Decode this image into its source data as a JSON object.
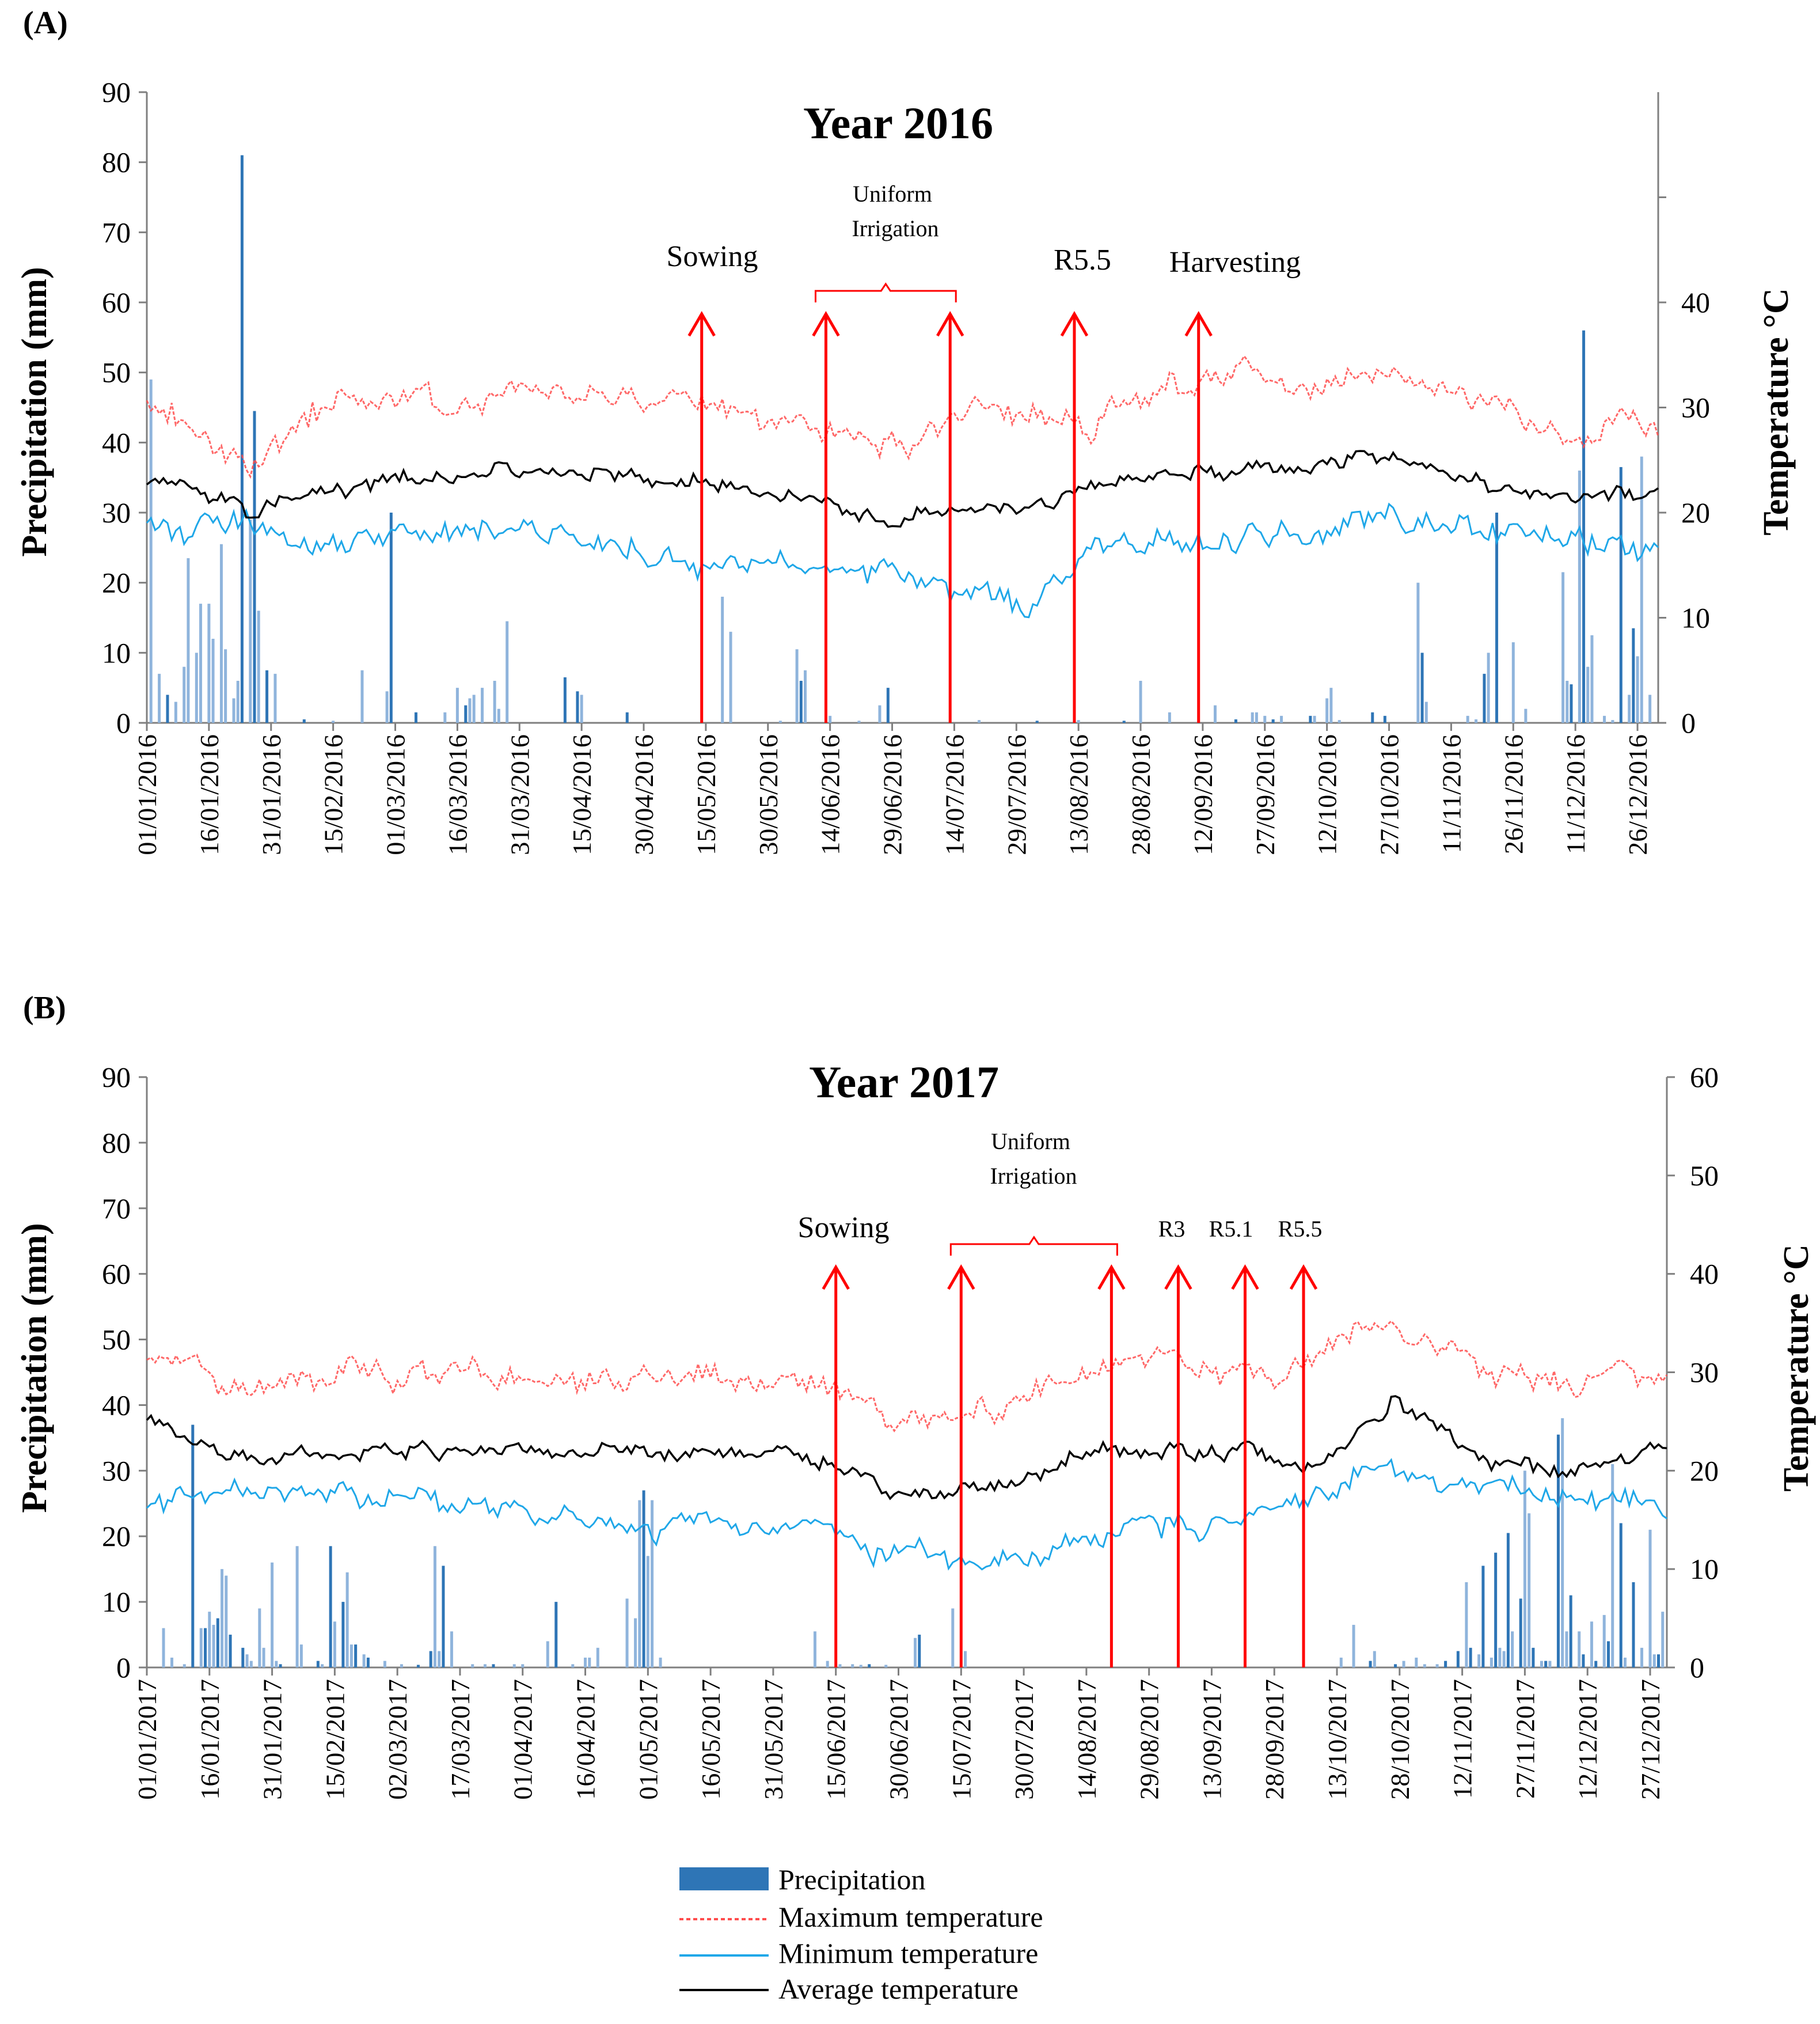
{
  "legend": {
    "precipitation": "Precipitation",
    "max_temp": "Maximum temperature",
    "min_temp": "Minimum temperature",
    "avg_temp": "Average temperature"
  },
  "colors": {
    "precipitation": "#2e75b6",
    "max_temp": "#ff4d4d",
    "min_temp": "#1fa7e8",
    "avg_temp": "#000000",
    "arrow": "#ff0000"
  },
  "chart_data": [
    {
      "type": "bar",
      "panel_label": "(A)",
      "title": "Year 2016",
      "ylabel": "Precipitation (mm)",
      "y2label": "Temperature °C",
      "ylim": [
        0,
        90
      ],
      "y2lim": [
        0,
        60
      ],
      "yticks": [
        0,
        10,
        20,
        30,
        40,
        50,
        60,
        70,
        80,
        90
      ],
      "y2ticks": [
        0,
        10,
        20,
        30,
        40
      ],
      "xticks": [
        "01/01/2016",
        "16/01/2016",
        "31/01/2016",
        "15/02/2016",
        "01/03/2016",
        "16/03/2016",
        "31/03/2016",
        "15/04/2016",
        "30/04/2016",
        "15/05/2016",
        "30/05/2016",
        "14/06/2016",
        "29/06/2016",
        "14/07/2016",
        "29/07/2016",
        "13/08/2016",
        "28/08/2016",
        "12/09/2016",
        "27/09/2016",
        "12/10/2016",
        "27/10/2016",
        "11/11/2016",
        "26/11/2016",
        "11/12/2016",
        "26/12/2016"
      ],
      "days": 366,
      "precipitation": [
        {
          "day": 2,
          "mm": 49
        },
        {
          "day": 4,
          "mm": 7
        },
        {
          "day": 6,
          "mm": 4
        },
        {
          "day": 8,
          "mm": 3
        },
        {
          "day": 10,
          "mm": 8
        },
        {
          "day": 11,
          "mm": 23.5
        },
        {
          "day": 13,
          "mm": 10
        },
        {
          "day": 14,
          "mm": 17
        },
        {
          "day": 16,
          "mm": 17
        },
        {
          "day": 17,
          "mm": 12
        },
        {
          "day": 19,
          "mm": 25.5
        },
        {
          "day": 20,
          "mm": 10.5
        },
        {
          "day": 22,
          "mm": 3.5
        },
        {
          "day": 23,
          "mm": 6
        },
        {
          "day": 24,
          "mm": 81
        },
        {
          "day": 26,
          "mm": 29
        },
        {
          "day": 27,
          "mm": 44.5
        },
        {
          "day": 28,
          "mm": 16
        },
        {
          "day": 30,
          "mm": 7.5
        },
        {
          "day": 32,
          "mm": 7
        },
        {
          "day": 39,
          "mm": 0.5
        },
        {
          "day": 46,
          "mm": 0.3
        },
        {
          "day": 53,
          "mm": 7.5
        },
        {
          "day": 59,
          "mm": 4.5
        },
        {
          "day": 60,
          "mm": 30
        },
        {
          "day": 66,
          "mm": 1.5
        },
        {
          "day": 73,
          "mm": 1.5
        },
        {
          "day": 76,
          "mm": 5
        },
        {
          "day": 78,
          "mm": 2.5
        },
        {
          "day": 79,
          "mm": 3.5
        },
        {
          "day": 80,
          "mm": 4
        },
        {
          "day": 82,
          "mm": 5
        },
        {
          "day": 85,
          "mm": 6
        },
        {
          "day": 86,
          "mm": 2
        },
        {
          "day": 88,
          "mm": 14.5
        },
        {
          "day": 102,
          "mm": 6.5
        },
        {
          "day": 105,
          "mm": 4.5
        },
        {
          "day": 106,
          "mm": 4
        },
        {
          "day": 117,
          "mm": 1.5
        },
        {
          "day": 140,
          "mm": 18
        },
        {
          "day": 142,
          "mm": 13
        },
        {
          "day": 154,
          "mm": 0.3
        },
        {
          "day": 158,
          "mm": 10.5
        },
        {
          "day": 159,
          "mm": 6
        },
        {
          "day": 160,
          "mm": 7.5
        },
        {
          "day": 166,
          "mm": 1
        },
        {
          "day": 173,
          "mm": 0.3
        },
        {
          "day": 178,
          "mm": 2.5
        },
        {
          "day": 180,
          "mm": 5
        },
        {
          "day": 202,
          "mm": 0.4
        },
        {
          "day": 216,
          "mm": 0.3
        },
        {
          "day": 226,
          "mm": 0.4
        },
        {
          "day": 237,
          "mm": 0.3
        },
        {
          "day": 241,
          "mm": 6
        },
        {
          "day": 248,
          "mm": 1.5
        },
        {
          "day": 259,
          "mm": 2.5
        },
        {
          "day": 264,
          "mm": 0.5
        },
        {
          "day": 268,
          "mm": 1.5
        },
        {
          "day": 269,
          "mm": 1.5
        },
        {
          "day": 271,
          "mm": 1
        },
        {
          "day": 273,
          "mm": 0.5
        },
        {
          "day": 275,
          "mm": 1
        },
        {
          "day": 282,
          "mm": 1
        },
        {
          "day": 283,
          "mm": 1
        },
        {
          "day": 286,
          "mm": 3.5
        },
        {
          "day": 287,
          "mm": 5
        },
        {
          "day": 289,
          "mm": 0.4
        },
        {
          "day": 297,
          "mm": 1.5
        },
        {
          "day": 300,
          "mm": 1
        },
        {
          "day": 308,
          "mm": 20
        },
        {
          "day": 309,
          "mm": 10
        },
        {
          "day": 310,
          "mm": 3
        },
        {
          "day": 320,
          "mm": 1
        },
        {
          "day": 322,
          "mm": 0.5
        },
        {
          "day": 324,
          "mm": 7
        },
        {
          "day": 325,
          "mm": 10
        },
        {
          "day": 327,
          "mm": 30
        },
        {
          "day": 331,
          "mm": 11.5
        },
        {
          "day": 334,
          "mm": 2
        },
        {
          "day": 343,
          "mm": 21.5
        },
        {
          "day": 344,
          "mm": 6
        },
        {
          "day": 345,
          "mm": 5.5
        },
        {
          "day": 347,
          "mm": 36
        },
        {
          "day": 348,
          "mm": 56
        },
        {
          "day": 349,
          "mm": 8
        },
        {
          "day": 350,
          "mm": 12.5
        },
        {
          "day": 353,
          "mm": 1
        },
        {
          "day": 355,
          "mm": 0.4
        },
        {
          "day": 357,
          "mm": 36.5
        },
        {
          "day": 359,
          "mm": 4
        },
        {
          "day": 360,
          "mm": 13.5
        },
        {
          "day": 361,
          "mm": 9.5
        },
        {
          "day": 362,
          "mm": 38
        },
        {
          "day": 364,
          "mm": 4
        }
      ],
      "events": [
        {
          "label": "Sowing",
          "date": "15/05/2016",
          "day": 135
        },
        {
          "label": "R5.5",
          "date": "13/08/2016",
          "day": 225
        },
        {
          "label": "Harvesting",
          "date": "12/09/2016",
          "day": 255
        }
      ],
      "irrigation": {
        "label": "Uniform Irrigation",
        "start_date": "14/06/2016",
        "start_day": 165,
        "end_date": "14/07/2016",
        "end_day": 195
      },
      "temperature_profile": {
        "max": {
          "base": 30,
          "jan": 27,
          "apr": 31,
          "jul": 27,
          "sep": 33,
          "oct": 32,
          "dec": 29
        },
        "avg": {
          "base": 22
        },
        "min": {
          "base": 17
        }
      }
    },
    {
      "type": "bar",
      "panel_label": "(B)",
      "title": "Year 2017",
      "ylabel": "Precipitation (mm)",
      "y2label": "Temperature °C",
      "ylim": [
        0,
        90
      ],
      "y2lim": [
        0,
        60
      ],
      "yticks": [
        0,
        10,
        20,
        30,
        40,
        50,
        60,
        70,
        80,
        90
      ],
      "y2ticks": [
        0,
        10,
        20,
        30,
        40,
        50,
        60
      ],
      "xticks": [
        "01/01/2017",
        "16/01/2017",
        "31/01/2017",
        "15/02/2017",
        "02/03/2017",
        "17/03/2017",
        "01/04/2017",
        "16/04/2017",
        "01/05/2017",
        "16/05/2017",
        "31/05/2017",
        "15/06/2017",
        "30/06/2017",
        "15/07/2017",
        "30/07/2017",
        "14/08/2017",
        "29/08/2017",
        "13/09/2017",
        "28/09/2017",
        "13/10/2017",
        "28/10/2017",
        "12/11/2017",
        "27/11/2017",
        "12/12/2017",
        "27/12/2017"
      ],
      "days": 365,
      "precipitation": [
        {
          "day": 5,
          "mm": 6
        },
        {
          "day": 7,
          "mm": 1.5
        },
        {
          "day": 10,
          "mm": 0.5
        },
        {
          "day": 12,
          "mm": 37
        },
        {
          "day": 14,
          "mm": 6
        },
        {
          "day": 15,
          "mm": 6
        },
        {
          "day": 16,
          "mm": 8.5
        },
        {
          "day": 17,
          "mm": 6.5
        },
        {
          "day": 18,
          "mm": 7.5
        },
        {
          "day": 19,
          "mm": 15
        },
        {
          "day": 20,
          "mm": 14
        },
        {
          "day": 21,
          "mm": 5
        },
        {
          "day": 24,
          "mm": 3
        },
        {
          "day": 25,
          "mm": 2
        },
        {
          "day": 26,
          "mm": 1
        },
        {
          "day": 28,
          "mm": 9
        },
        {
          "day": 29,
          "mm": 3
        },
        {
          "day": 31,
          "mm": 16
        },
        {
          "day": 32,
          "mm": 1
        },
        {
          "day": 33,
          "mm": 0.5
        },
        {
          "day": 37,
          "mm": 18.5
        },
        {
          "day": 38,
          "mm": 3.5
        },
        {
          "day": 42,
          "mm": 1
        },
        {
          "day": 43,
          "mm": 0.5
        },
        {
          "day": 45,
          "mm": 18.5
        },
        {
          "day": 46,
          "mm": 7
        },
        {
          "day": 48,
          "mm": 10
        },
        {
          "day": 49,
          "mm": 14.5
        },
        {
          "day": 50,
          "mm": 3.5
        },
        {
          "day": 51,
          "mm": 3.5
        },
        {
          "day": 53,
          "mm": 2
        },
        {
          "day": 54,
          "mm": 1.5
        },
        {
          "day": 58,
          "mm": 1
        },
        {
          "day": 62,
          "mm": 0.5
        },
        {
          "day": 66,
          "mm": 0.4
        },
        {
          "day": 69,
          "mm": 2.5
        },
        {
          "day": 70,
          "mm": 18.5
        },
        {
          "day": 71,
          "mm": 2.5
        },
        {
          "day": 72,
          "mm": 15.5
        },
        {
          "day": 74,
          "mm": 5.5
        },
        {
          "day": 79,
          "mm": 0.5
        },
        {
          "day": 82,
          "mm": 0.5
        },
        {
          "day": 84,
          "mm": 0.5
        },
        {
          "day": 89,
          "mm": 0.5
        },
        {
          "day": 91,
          "mm": 0.5
        },
        {
          "day": 97,
          "mm": 4
        },
        {
          "day": 99,
          "mm": 10
        },
        {
          "day": 103,
          "mm": 0.5
        },
        {
          "day": 106,
          "mm": 1.5
        },
        {
          "day": 107,
          "mm": 1.5
        },
        {
          "day": 109,
          "mm": 3
        },
        {
          "day": 116,
          "mm": 10.5
        },
        {
          "day": 118,
          "mm": 7.5
        },
        {
          "day": 119,
          "mm": 25.5
        },
        {
          "day": 120,
          "mm": 27
        },
        {
          "day": 121,
          "mm": 17
        },
        {
          "day": 122,
          "mm": 25.5
        },
        {
          "day": 124,
          "mm": 1.5
        },
        {
          "day": 161,
          "mm": 5.5
        },
        {
          "day": 164,
          "mm": 1
        },
        {
          "day": 167,
          "mm": 0.5
        },
        {
          "day": 170,
          "mm": 0.5
        },
        {
          "day": 172,
          "mm": 0.4
        },
        {
          "day": 174,
          "mm": 0.5
        },
        {
          "day": 178,
          "mm": 0.4
        },
        {
          "day": 185,
          "mm": 4.5
        },
        {
          "day": 186,
          "mm": 5
        },
        {
          "day": 194,
          "mm": 9
        },
        {
          "day": 197,
          "mm": 2.5
        },
        {
          "day": 287,
          "mm": 1.5
        },
        {
          "day": 290,
          "mm": 6.5
        },
        {
          "day": 294,
          "mm": 1
        },
        {
          "day": 295,
          "mm": 2.5
        },
        {
          "day": 300,
          "mm": 0.5
        },
        {
          "day": 302,
          "mm": 1
        },
        {
          "day": 305,
          "mm": 1.5
        },
        {
          "day": 307,
          "mm": 0.5
        },
        {
          "day": 310,
          "mm": 0.5
        },
        {
          "day": 312,
          "mm": 1
        },
        {
          "day": 315,
          "mm": 2.5
        },
        {
          "day": 317,
          "mm": 13
        },
        {
          "day": 318,
          "mm": 3
        },
        {
          "day": 320,
          "mm": 2
        },
        {
          "day": 321,
          "mm": 15.5
        },
        {
          "day": 323,
          "mm": 1.5
        },
        {
          "day": 324,
          "mm": 17.5
        },
        {
          "day": 325,
          "mm": 3
        },
        {
          "day": 326,
          "mm": 2.5
        },
        {
          "day": 327,
          "mm": 20.5
        },
        {
          "day": 328,
          "mm": 5.5
        },
        {
          "day": 330,
          "mm": 10.5
        },
        {
          "day": 331,
          "mm": 30
        },
        {
          "day": 332,
          "mm": 23.5
        },
        {
          "day": 333,
          "mm": 3
        },
        {
          "day": 335,
          "mm": 1
        },
        {
          "day": 336,
          "mm": 1
        },
        {
          "day": 337,
          "mm": 1
        },
        {
          "day": 339,
          "mm": 35.5
        },
        {
          "day": 340,
          "mm": 38
        },
        {
          "day": 341,
          "mm": 5.5
        },
        {
          "day": 342,
          "mm": 11
        },
        {
          "day": 344,
          "mm": 5.5
        },
        {
          "day": 345,
          "mm": 2
        },
        {
          "day": 347,
          "mm": 7
        },
        {
          "day": 348,
          "mm": 1
        },
        {
          "day": 350,
          "mm": 8
        },
        {
          "day": 351,
          "mm": 4
        },
        {
          "day": 352,
          "mm": 31
        },
        {
          "day": 354,
          "mm": 22
        },
        {
          "day": 355,
          "mm": 1.5
        },
        {
          "day": 357,
          "mm": 13
        },
        {
          "day": 359,
          "mm": 3
        },
        {
          "day": 361,
          "mm": 21
        },
        {
          "day": 362,
          "mm": 2
        },
        {
          "day": 363,
          "mm": 2
        },
        {
          "day": 364,
          "mm": 8.5
        }
      ],
      "events": [
        {
          "label": "Sowing",
          "date": "15/06/2017",
          "day": 166
        },
        {
          "label": "R3",
          "date": "05/09/2017",
          "day": 248
        },
        {
          "label": "R5.1",
          "date": "21/09/2017",
          "day": 264
        },
        {
          "label": "R5.5",
          "date": "05/10/2017",
          "day": 278
        }
      ],
      "irrigation": {
        "label": "Uniform Irrigation",
        "start_date": "15/07/2017",
        "start_day": 196,
        "end_date": "20/08/2017",
        "end_day": 232
      },
      "temperature_profile": {
        "max": {
          "base": 29
        },
        "avg": {
          "base": 22
        },
        "min": {
          "base": 17
        }
      }
    }
  ]
}
